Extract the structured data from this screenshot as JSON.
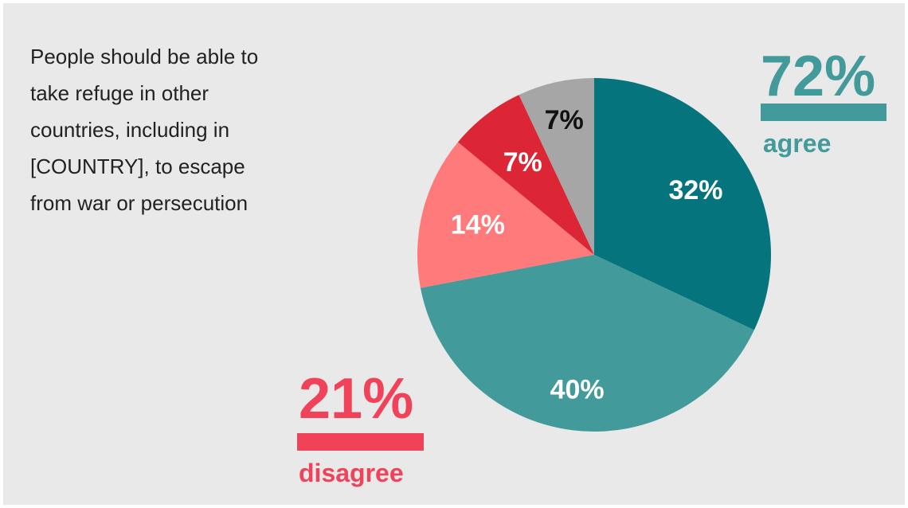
{
  "question": {
    "lines": [
      "People should be able to",
      "take refuge in other",
      "countries, including in",
      "[COUNTRY], to escape",
      "from war or persecution"
    ]
  },
  "summary": {
    "agree": {
      "percent": "72%",
      "word": "agree",
      "color": "#429a9a"
    },
    "disagree": {
      "percent": "21%",
      "word": "disagree",
      "color": "#f0435a"
    }
  },
  "chart_data": {
    "type": "pie",
    "title": "",
    "start": "top, clockwise",
    "slices": [
      {
        "label": "32%",
        "value": 32,
        "color": "#06747d",
        "label_color": "#ffffff"
      },
      {
        "label": "40%",
        "value": 40,
        "color": "#429a9a",
        "label_color": "#ffffff"
      },
      {
        "label": "14%",
        "value": 14,
        "color": "#ff7a7a",
        "label_color": "#ffffff"
      },
      {
        "label": "7%",
        "value": 7,
        "color": "#dc2535",
        "label_color": "#ffffff"
      },
      {
        "label": "7%",
        "value": 7,
        "color": "#a6a6a6",
        "label_color": "#111111"
      }
    ]
  }
}
